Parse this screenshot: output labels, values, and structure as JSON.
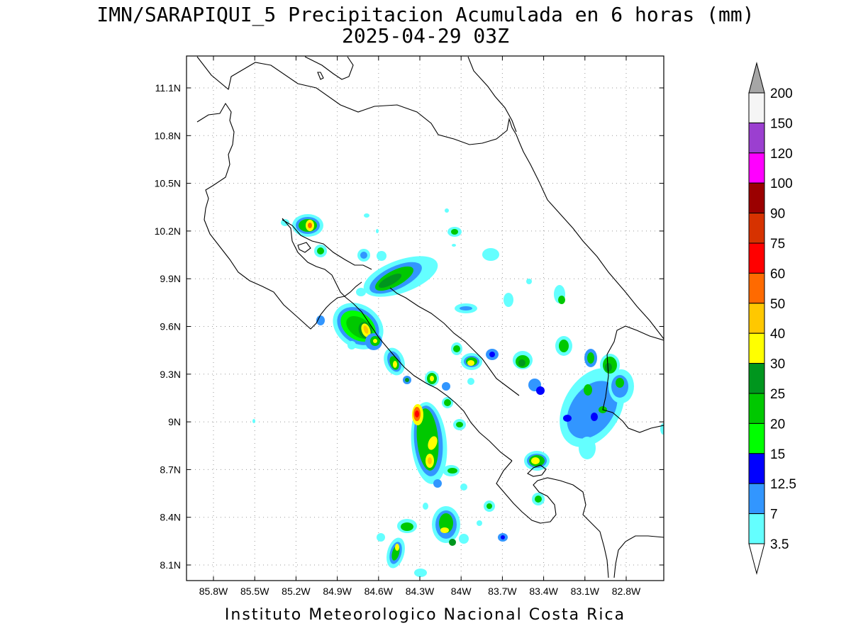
{
  "title": {
    "line1": "IMN/SARAPIQUI_5 Precipitacion Acumulada en 6 horas (mm)",
    "line2": "2025-04-29 03Z"
  },
  "footer": "Instituto Meteorologico Nacional Costa Rica",
  "axes": {
    "lon_ticks": [
      "85.8W",
      "85.5W",
      "85.2W",
      "84.9W",
      "84.6W",
      "84.3W",
      "84W",
      "83.7W",
      "83.4W",
      "83.1W",
      "82.8W"
    ],
    "lat_ticks": [
      "11.1N",
      "10.8N",
      "10.5N",
      "10.2N",
      "9.9N",
      "9.6N",
      "9.3N",
      "9N",
      "8.7N",
      "8.4N",
      "8.1N"
    ]
  },
  "colorbar": {
    "labels": [
      "200",
      "150",
      "120",
      "100",
      "90",
      "75",
      "60",
      "50",
      "40",
      "30",
      "25",
      "20",
      "15",
      "12.5",
      "7",
      "3.5"
    ],
    "colors": [
      "#f5f5f5",
      "#9b3fd0",
      "#ff00ff",
      "#9b0000",
      "#d63200",
      "#ff0000",
      "#ff6a00",
      "#ffc800",
      "#ffff00",
      "#00961e",
      "#00c800",
      "#00ff00",
      "#0000ff",
      "#3296ff",
      "#64ffff"
    ],
    "top_arrow_color": "#a6a6a6",
    "bottom_arrow_color": "#ffffff"
  },
  "colors": {
    "c35": "#64ffff",
    "c7": "#3296ff",
    "c12": "#0000ff",
    "c15": "#00ff00",
    "c20": "#00c800",
    "c25": "#00961e",
    "c30": "#ffff00",
    "c40": "#ffc800",
    "c50": "#ff6a00",
    "c60": "#ff0000"
  }
}
